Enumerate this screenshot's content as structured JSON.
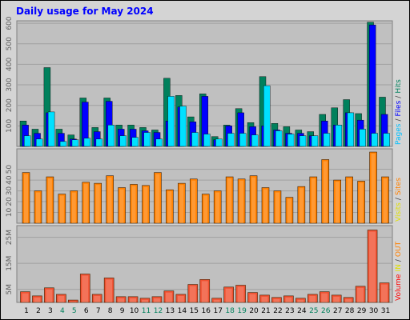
{
  "title": "Daily usage for May 2024",
  "chart_data": [
    {
      "type": "bar3",
      "ylim": [
        0,
        612
      ],
      "yticks": [
        100,
        200,
        300,
        400,
        500,
        600
      ],
      "grid": true,
      "series": [
        {
          "name": "Hits",
          "color": "#00805c",
          "values": [
            124,
            84,
            384,
            84,
            56,
            236,
            92,
            236,
            104,
            104,
            92,
            80,
            332,
            248,
            144,
            256,
            48,
            104,
            184,
            116,
            340,
            112,
            96,
            80,
            72,
            156,
            188,
            228,
            160,
            605,
            240
          ]
        },
        {
          "name": "Files",
          "color": "#0000ff",
          "values": [
            104,
            64,
            164,
            64,
            36,
            216,
            72,
            220,
            84,
            84,
            76,
            68,
            124,
            192,
            120,
            244,
            32,
            100,
            164,
            96,
            100,
            80,
            64,
            64,
            52,
            124,
            104,
            164,
            128,
            592,
            156
          ]
        },
        {
          "name": "Pages",
          "color": "#00e0ff",
          "values": [
            52,
            36,
            168,
            24,
            32,
            40,
            36,
            104,
            52,
            44,
            68,
            36,
            244,
            196,
            68,
            60,
            36,
            64,
            64,
            56,
            296,
            76,
            60,
            52,
            52,
            64,
            104,
            164,
            84,
            64,
            64
          ]
        }
      ],
      "legend_parts": [
        {
          "text": "Pages",
          "color": "#00c0ff"
        },
        {
          "text": "/",
          "color": "#404040"
        },
        {
          "text": "Files",
          "color": "#0000ff"
        },
        {
          "text": "/",
          "color": "#404040"
        },
        {
          "text": "Hits",
          "color": "#00805c"
        }
      ]
    },
    {
      "type": "bar",
      "ylim": [
        0,
        69
      ],
      "yticks": [
        10,
        20,
        30,
        40,
        50
      ],
      "grid": true,
      "series": [
        {
          "name": "Sites",
          "color": "#ff8000",
          "values": [
            47,
            30,
            43,
            27,
            30,
            38,
            37,
            44,
            33,
            36,
            35,
            47,
            31,
            37,
            41,
            27,
            30,
            43,
            41,
            44,
            33,
            30,
            24,
            34,
            43,
            59,
            40,
            43,
            39,
            66,
            43
          ]
        }
      ],
      "legend_parts": [
        {
          "text": "Visits",
          "color": "#e0e000"
        },
        {
          "text": "/",
          "color": "#404040"
        },
        {
          "text": "Sites",
          "color": "#ff8000"
        }
      ]
    },
    {
      "type": "bar",
      "ylim": [
        0,
        29.5
      ],
      "yticks": [
        {
          "value": 5,
          "label": "5M"
        },
        {
          "value": 15,
          "label": "15M"
        },
        {
          "value": 25,
          "label": "25M"
        }
      ],
      "grid": true,
      "categories": [
        "1",
        "2",
        "3",
        "4",
        "5",
        "6",
        "7",
        "8",
        "9",
        "10",
        "11",
        "12",
        "13",
        "14",
        "15",
        "16",
        "17",
        "18",
        "19",
        "20",
        "21",
        "22",
        "23",
        "24",
        "25",
        "26",
        "27",
        "28",
        "29",
        "30",
        "31"
      ],
      "category_colors": [
        "#000000",
        "#000000",
        "#000000",
        "#00805c",
        "#00805c",
        "#000000",
        "#000000",
        "#000000",
        "#000000",
        "#000000",
        "#00805c",
        "#00805c",
        "#000000",
        "#000000",
        "#000000",
        "#000000",
        "#000000",
        "#00805c",
        "#00805c",
        "#000000",
        "#000000",
        "#000000",
        "#000000",
        "#000000",
        "#00805c",
        "#00805c",
        "#000000",
        "#000000",
        "#000000",
        "#000000",
        "#000000"
      ],
      "series": [
        {
          "name": "Volume",
          "color": "#f05030",
          "values": [
            4.1,
            2.5,
            5.6,
            3.1,
            0.9,
            10.9,
            3.1,
            9.4,
            2.2,
            2.2,
            1.6,
            2.2,
            4.4,
            3.1,
            6.9,
            8.8,
            1.6,
            5.9,
            6.6,
            3.8,
            2.8,
            1.9,
            2.5,
            1.6,
            3.1,
            4.1,
            2.8,
            1.9,
            6.2,
            27.8,
            7.5
          ]
        }
      ],
      "legend_parts": [
        {
          "text": "Volume",
          "color": "#ff0000"
        },
        {
          "text": "IN",
          "color": "#e0e000"
        },
        {
          "text": "/",
          "color": "#404040"
        },
        {
          "text": "OUT",
          "color": "#ff8000"
        }
      ]
    }
  ]
}
